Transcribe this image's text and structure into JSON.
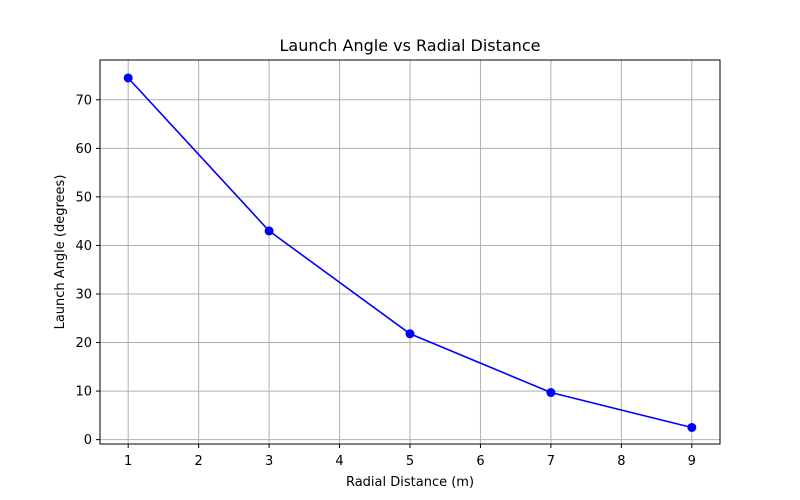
{
  "chart_data": {
    "type": "line",
    "title": "Launch Angle vs Radial Distance",
    "xlabel": "Radial Distance (m)",
    "ylabel": "Launch Angle (degrees)",
    "xlim": [
      0.6,
      9.4
    ],
    "ylim": [
      -0.9,
      78.2
    ],
    "xticks": [
      1,
      2,
      3,
      4,
      5,
      6,
      7,
      8,
      9
    ],
    "yticks": [
      0,
      10,
      20,
      30,
      40,
      50,
      60,
      70
    ],
    "grid": true,
    "series": [
      {
        "color": "#0000ff",
        "marker": "circle",
        "points": [
          {
            "x": 1,
            "y": 74.5
          },
          {
            "x": 3,
            "y": 43.0
          },
          {
            "x": 5,
            "y": 21.8
          },
          {
            "x": 7,
            "y": 9.7
          },
          {
            "x": 9,
            "y": 2.5
          }
        ]
      }
    ]
  }
}
